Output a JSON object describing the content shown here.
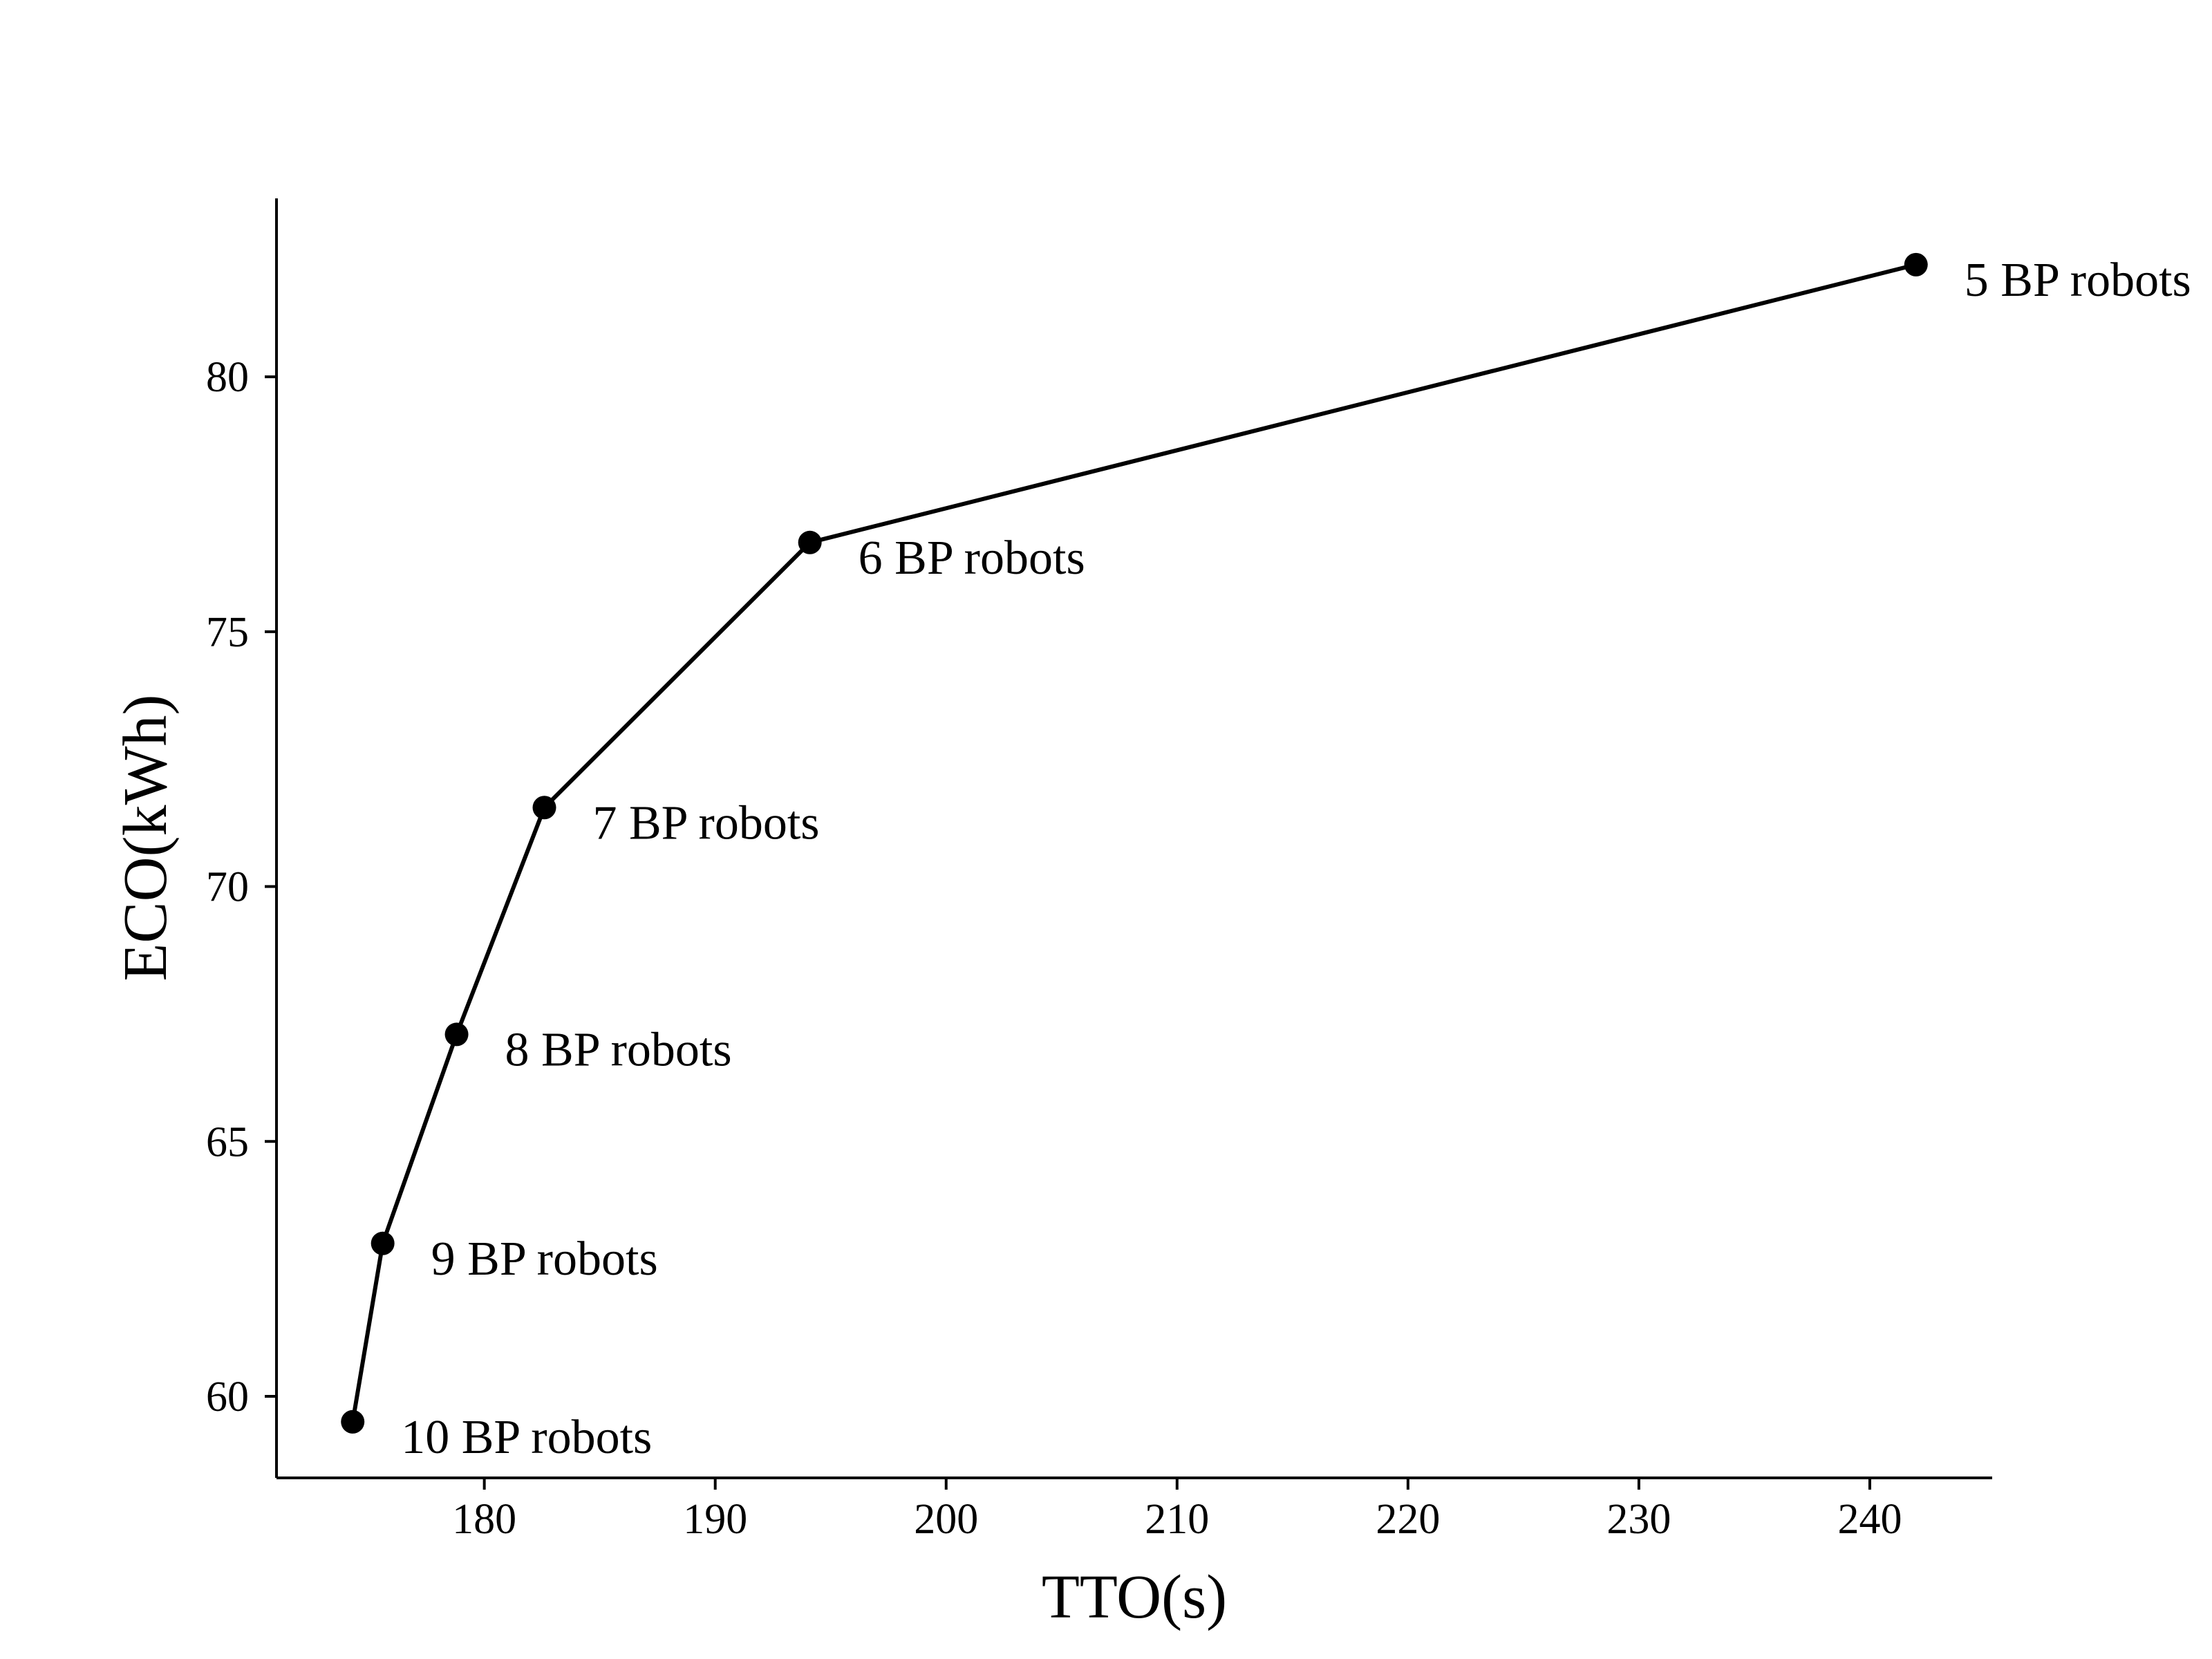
{
  "chart_data": {
    "type": "line",
    "title": "",
    "xlabel": "TTO(s)",
    "ylabel": "ECO(kWh)",
    "xlim": [
      171,
      245.3
    ],
    "ylim": [
      58.4,
      83.5
    ],
    "xticks": [
      180,
      190,
      200,
      210,
      220,
      230,
      240
    ],
    "yticks": [
      60,
      65,
      70,
      75,
      80
    ],
    "grid": false,
    "legend": "none",
    "series": [
      {
        "color": "#000000",
        "marker": "circle",
        "points": [
          {
            "x": 174.3,
            "y": 59.5,
            "label": "10 BP robots"
          },
          {
            "x": 175.6,
            "y": 63.0,
            "label": "9 BP robots"
          },
          {
            "x": 178.8,
            "y": 67.1,
            "label": "8 BP robots"
          },
          {
            "x": 182.6,
            "y": 71.55,
            "label": "7 BP robots"
          },
          {
            "x": 194.1,
            "y": 76.75,
            "label": "6 BP robots"
          },
          {
            "x": 242.0,
            "y": 82.2,
            "label": "5 BP robots"
          }
        ]
      }
    ]
  }
}
